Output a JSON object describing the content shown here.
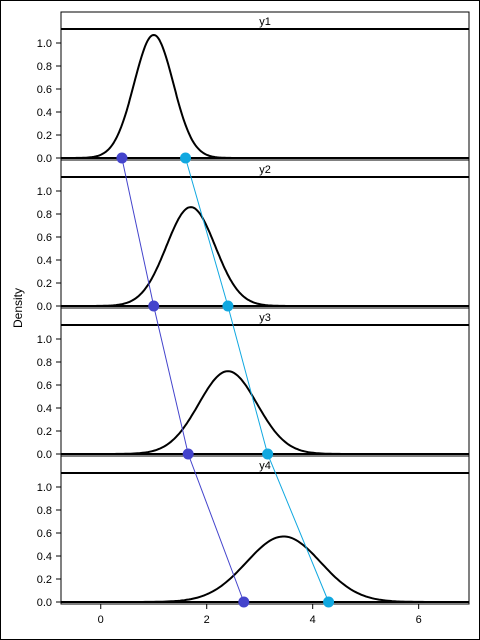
{
  "chart_data": {
    "type": "line",
    "xlabel": "",
    "ylabel": "Density",
    "xlim": [
      -0.75,
      6.95
    ],
    "ylim": [
      -0.05,
      1.12
    ],
    "x_ticks": [
      0,
      2,
      4,
      6
    ],
    "y_ticks": [
      0.0,
      0.2,
      0.4,
      0.6,
      0.8,
      1.0
    ],
    "grid": false,
    "panels": [
      {
        "name": "y1",
        "mean": 1.0,
        "sd": 0.37,
        "peak": 1.07,
        "range": [
          -0.75,
          2.55
        ],
        "left_marker": 0.4,
        "right_marker": 1.6
      },
      {
        "name": "y2",
        "mean": 1.7,
        "sd": 0.46,
        "peak": 0.86,
        "range": [
          -0.3,
          3.8
        ],
        "left_marker": 1.0,
        "right_marker": 2.4
      },
      {
        "name": "y3",
        "mean": 2.4,
        "sd": 0.55,
        "peak": 0.72,
        "range": [
          -0.2,
          5.1
        ],
        "left_marker": 1.65,
        "right_marker": 3.15
      },
      {
        "name": "y4",
        "mean": 3.45,
        "sd": 0.7,
        "peak": 0.57,
        "range": [
          0.3,
          6.9
        ],
        "left_marker": 2.7,
        "right_marker": 4.3
      }
    ],
    "marker_series": [
      {
        "key": "left_marker",
        "color": "#4444cc"
      },
      {
        "key": "right_marker",
        "color": "#11a8e0"
      }
    ]
  }
}
